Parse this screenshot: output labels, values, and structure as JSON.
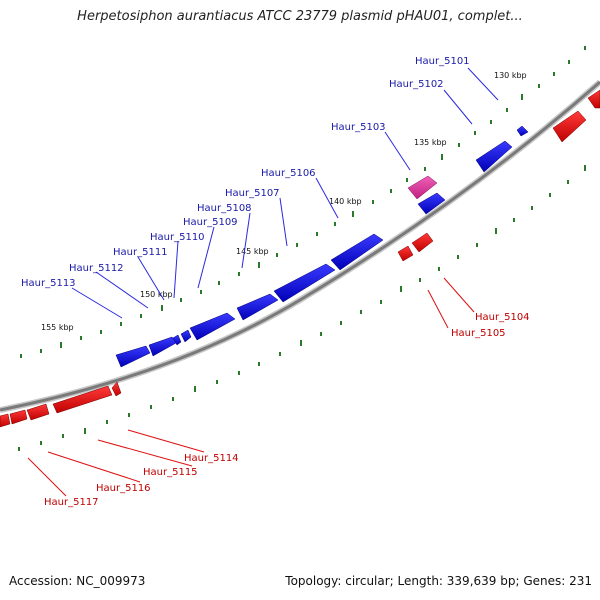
{
  "title": "Herpetosiphon aurantiacus ATCC 23779 plasmid pHAU01, complet...",
  "footer": {
    "accession": "Accession: NC_009973",
    "summary": "Topology: circular; Length: 339,639 bp; Genes: 231"
  },
  "colors": {
    "forward_gene": "#1010e0",
    "reverse_gene": "#ee1010",
    "highlight_gene": "#e0309a",
    "backbone": "#8a8a8a",
    "ticks": "#2a7a2a"
  },
  "kbp_labels": [
    "130 kbp",
    "135 kbp",
    "140 kbp",
    "145 kbp",
    "150 kbp",
    "155 kbp"
  ],
  "genes": [
    {
      "name": "Haur_5101",
      "strand": "forward"
    },
    {
      "name": "Haur_5102",
      "strand": "forward"
    },
    {
      "name": "Haur_5103",
      "strand": "forward"
    },
    {
      "name": "Haur_5104",
      "strand": "reverse"
    },
    {
      "name": "Haur_5105",
      "strand": "reverse"
    },
    {
      "name": "Haur_5106",
      "strand": "forward"
    },
    {
      "name": "Haur_5107",
      "strand": "forward"
    },
    {
      "name": "Haur_5108",
      "strand": "forward"
    },
    {
      "name": "Haur_5109",
      "strand": "forward"
    },
    {
      "name": "Haur_5110",
      "strand": "forward"
    },
    {
      "name": "Haur_5111",
      "strand": "forward"
    },
    {
      "name": "Haur_5112",
      "strand": "forward"
    },
    {
      "name": "Haur_5113",
      "strand": "forward"
    },
    {
      "name": "Haur_5114",
      "strand": "reverse"
    },
    {
      "name": "Haur_5115",
      "strand": "reverse"
    },
    {
      "name": "Haur_5116",
      "strand": "reverse"
    },
    {
      "name": "Haur_5117",
      "strand": "reverse"
    }
  ]
}
